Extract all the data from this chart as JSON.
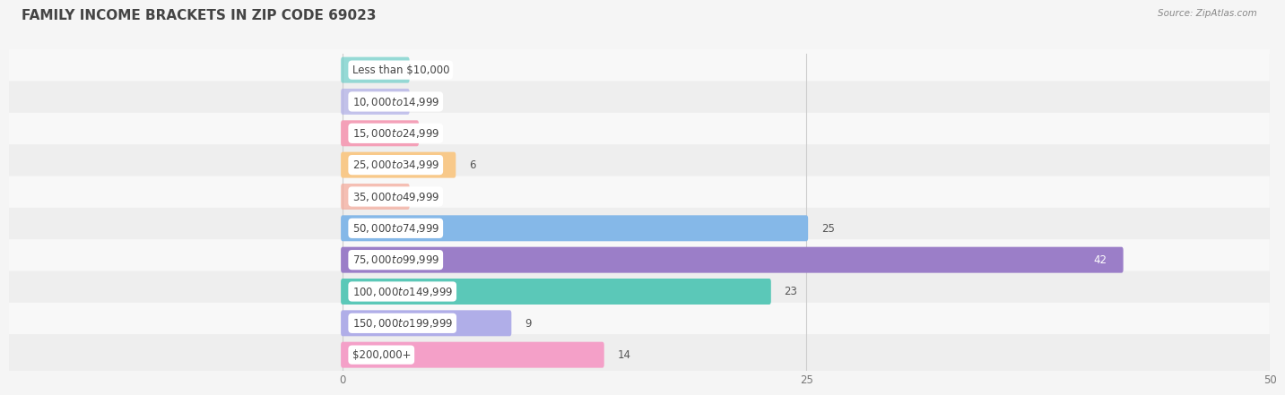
{
  "title": "FAMILY INCOME BRACKETS IN ZIP CODE 69023",
  "source": "Source: ZipAtlas.com",
  "categories": [
    "Less than $10,000",
    "$10,000 to $14,999",
    "$15,000 to $24,999",
    "$25,000 to $34,999",
    "$35,000 to $49,999",
    "$50,000 to $74,999",
    "$75,000 to $99,999",
    "$100,000 to $149,999",
    "$150,000 to $199,999",
    "$200,000+"
  ],
  "values": [
    0,
    0,
    4,
    6,
    0,
    25,
    42,
    23,
    9,
    14
  ],
  "colors": [
    "#6dcec8",
    "#b0aee8",
    "#f4a0b8",
    "#f8c98a",
    "#f4a898",
    "#85b8e8",
    "#9b7ec8",
    "#5bc8b8",
    "#b0aee8",
    "#f4a0c8"
  ],
  "row_bg_light": "#f8f8f8",
  "row_bg_dark": "#eeeeee",
  "bar_bg_alpha": 0.35,
  "xlim": [
    0,
    50
  ],
  "xticks": [
    0,
    25,
    50
  ],
  "bar_height": 0.62,
  "background_color": "#f5f5f5",
  "title_fontsize": 11,
  "label_fontsize": 8.5,
  "value_fontsize": 8.5
}
